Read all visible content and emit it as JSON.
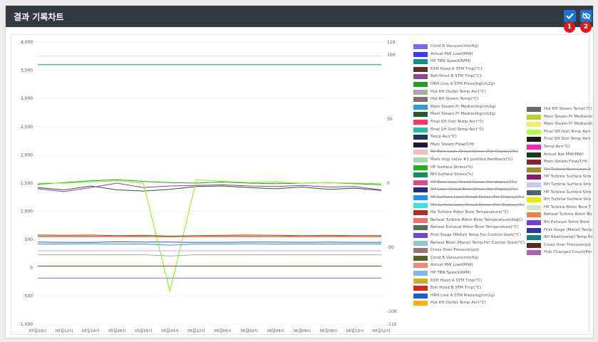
{
  "header": {
    "title": "결과 기록차트",
    "confirm_badge": "1",
    "view_badge": "2"
  },
  "chart_data": {
    "type": "line",
    "x_tick_labels": [
      "05일10시",
      "05일12시",
      "05일14시",
      "05일16시",
      "05일18시",
      "05일20시",
      "05일22시",
      "06일00시",
      "06일02시",
      "06일04시",
      "06일06시",
      "06일08시",
      "06일10시",
      "06일12시"
    ],
    "left_axis": {
      "range": [
        -1000,
        4000
      ],
      "ticks": [
        "4,000",
        "3,500",
        "3,000",
        "2,500",
        "2,000",
        "1,500",
        "1,000",
        "500",
        "0",
        "-500",
        "-1,000"
      ]
    },
    "right_axis": {
      "range": [
        -110,
        110
      ],
      "ticks": [
        "110",
        "100",
        "50",
        "0",
        "-50",
        "-100",
        "-110"
      ]
    },
    "series": [
      {
        "name": "Cond B Vacuum(mmHg)",
        "color": "#7b68ee",
        "axis": "right",
        "values": [
          -74,
          -74,
          -74,
          -74,
          -74,
          -74,
          -74,
          -74,
          -74,
          -74,
          -74,
          -74,
          -74,
          -74
        ]
      },
      {
        "name": "Actual MW Load(MW)",
        "color": "#3c3cff",
        "axis": "left",
        "values": [
          455,
          450,
          450,
          460,
          455,
          455,
          450,
          450,
          455,
          455,
          450,
          455,
          450,
          450
        ]
      },
      {
        "name": "HP TBN Speed(RPM)",
        "color": "#0f8f8f",
        "axis": "left",
        "values": [
          3600,
          3600,
          3600,
          3600,
          3600,
          3600,
          3600,
          3600,
          3600,
          3600,
          3600,
          3600,
          3600,
          3600
        ]
      },
      {
        "name": "Hot RH Steam Temp(°C)",
        "color": "#c8e6c0",
        "axis": "left",
        "values": [
          3750,
          3750,
          3750,
          3750,
          3750,
          3750,
          3750,
          3750,
          3750,
          3750,
          3750,
          3750,
          3750,
          3750
        ]
      },
      {
        "name": "Main Steam Pr Median(kg/cm2g)",
        "color": "#1ca81c",
        "axis": "left",
        "values": [
          1480,
          1510,
          1540,
          1560,
          1530,
          1510,
          1500,
          1520,
          1500,
          1490,
          1500,
          1510,
          1490,
          1470
        ]
      },
      {
        "name": "Main Steam Pr Median(kg/cm2g)",
        "color": "#2a5a2a",
        "axis": "left",
        "values": [
          1420,
          1380,
          1450,
          1380,
          1360,
          1390,
          1440,
          1450,
          1420,
          1400,
          1430,
          1390,
          1410,
          1370
        ]
      },
      {
        "name": "Final SH Outl Temp Avr(°C)",
        "color": "#9932cc",
        "axis": "left",
        "values": [
          1400,
          1350,
          1420,
          1500,
          1420,
          1450,
          1460,
          1470,
          1450,
          1440,
          1460,
          1430,
          1440,
          1380
        ]
      },
      {
        "name": "Final SH Outl Temp Avr(°C)",
        "color": "#7cfc00",
        "axis": "left",
        "values": [
          1500,
          1500,
          1520,
          1540,
          1500,
          -420,
          1560,
          1530,
          1510,
          1520,
          1500,
          1510,
          1500,
          1490
        ]
      },
      {
        "name": "Hp Turbine Rotor Bore Temperature(°C)",
        "color": "#8b4513",
        "axis": "left",
        "values": [
          580,
          575,
          580,
          570,
          575,
          560,
          570,
          575,
          580,
          575,
          570,
          575,
          570,
          570
        ]
      },
      {
        "name": "Reheat Turbine Rotor Bore Temperature(degC)",
        "color": "#f08080",
        "axis": "left",
        "values": [
          560,
          560,
          560,
          555,
          560,
          545,
          560,
          560,
          560,
          555,
          560,
          560,
          555,
          560
        ]
      },
      {
        "name": "Reheat Exhaust Rotor Bore Temperature(°C)",
        "color": "#8fbc8f",
        "axis": "left",
        "values": [
          230,
          230,
          230,
          230,
          230,
          210,
          230,
          230,
          230,
          230,
          230,
          230,
          230,
          230
        ]
      },
      {
        "name": "First Stage (Metal) Temp For Control Start(°C)",
        "color": "#c8a0ff",
        "axis": "left",
        "values": [
          300,
          300,
          300,
          300,
          300,
          300,
          300,
          300,
          300,
          300,
          300,
          300,
          300,
          300
        ]
      },
      {
        "name": "Reheat Bowl (Metal) Temp For Control Start(°C)",
        "color": "#e07020",
        "axis": "left",
        "values": [
          550,
          550,
          550,
          550,
          550,
          550,
          550,
          550,
          550,
          550,
          550,
          550,
          550,
          550
        ]
      },
      {
        "name": "Cross Over Pressure(psi)",
        "color": "#6b4226",
        "axis": "left",
        "values": [
          30,
          30,
          30,
          30,
          30,
          30,
          30,
          30,
          30,
          30,
          30,
          30,
          30,
          30
        ]
      },
      {
        "name": "HP Bore Lean Ahead Stress (for display)(%)",
        "color": "#1e90ff",
        "axis": "left",
        "values": [
          420,
          420,
          425,
          420,
          420,
          400,
          420,
          420,
          425,
          420,
          420,
          420,
          420,
          420
        ]
      }
    ]
  },
  "legend_col1": [
    {
      "label": "Cond B Vacuum(mmHg)",
      "color": "#7b68ee",
      "off": false
    },
    {
      "label": "Actual MW Load(MW)",
      "color": "#3c3cff",
      "off": false
    },
    {
      "label": "HP TBN Speed(RPM)",
      "color": "#0f8f8f",
      "off": false
    },
    {
      "label": "EXH Hood A STM Tmp(°C)",
      "color": "#6b2a2a",
      "off": false
    },
    {
      "label": "Exh Hood B STM Tmp(°C)",
      "color": "#8b4a8b",
      "off": false
    },
    {
      "label": "HRH Line A STM Press(kg/cm2g)",
      "color": "#22a022",
      "off": false
    },
    {
      "label": "Hot RH Outlet Temp Avr(°C)",
      "color": "#a9a9a9",
      "off": false
    },
    {
      "label": "Hot RH Steam Temp(°C)",
      "color": "#8b6b6b",
      "off": false
    },
    {
      "label": "Main Steam Pr Median(kg/cm2g)",
      "color": "#2aa0d0",
      "off": false
    },
    {
      "label": "Main Steam Pr Median(kg/cm2g)",
      "color": "#2a5a2a",
      "off": false
    },
    {
      "label": "Final SH Outl Temp Avr(°C)",
      "color": "#ff3366",
      "off": false
    },
    {
      "label": "Final SH Outl Temp Avr(°C)",
      "color": "#20c0a0",
      "off": false
    },
    {
      "label": "Temp Avr(°C)",
      "color": "#1a3a5a",
      "off": false
    },
    {
      "label": "Main Steam Flow(T/H)",
      "color": "#1a1a3a",
      "off": false
    },
    {
      "label": "Rh Bore Lean Ahead Stress (For Display)(%)",
      "color": "#f4b8c8",
      "off": true
    },
    {
      "label": "Main stop valve #1 position feedback(%)",
      "color": "#a8d8a8",
      "off": false
    },
    {
      "label": "HP Surface Stress(%)",
      "color": "#22b022",
      "off": false
    },
    {
      "label": "RH Surface Stress(%)",
      "color": "#109060",
      "off": false
    },
    {
      "label": "HP Bore Lean Ahead Stress (for display)(%)",
      "color": "#e04890",
      "off": true
    },
    {
      "label": "RH Lean Ahead Bore Stress (for Display)(%)",
      "color": "#2a2a7a",
      "off": true
    },
    {
      "label": "HP Surface Lean Ahead Stress (For Display)(%)",
      "color": "#1e90ff",
      "off": true
    },
    {
      "label": "RH Surface Lean Ahead Stress (For Display)(%)",
      "color": "#40e0e0",
      "off": true
    },
    {
      "label": "Hp Turbine Rotor Bore Temperature(°C)",
      "color": "#b03020",
      "off": false
    },
    {
      "label": "Reheat Turbine Rotor Bore Temperature(degC)",
      "color": "#f07070",
      "off": false
    },
    {
      "label": "Reheat Exhaust Rotor Bore Temperature(°C)",
      "color": "#507050",
      "off": false
    },
    {
      "label": "First Stage (Metal) Temp For Control Start(°C)",
      "color": "#6a4acd",
      "off": false
    },
    {
      "label": "Reheat Bowl (Metal) Temp For Control Start(°C)",
      "color": "#90c8c8",
      "off": false
    },
    {
      "label": "Cross Over Pressure(psi)",
      "color": "#a07070",
      "off": false
    },
    {
      "label": "Cond B Vacuum(mmHg)",
      "color": "#5a6030",
      "off": false
    },
    {
      "label": "Actual MW Load(MW)",
      "color": "#f08878",
      "off": false
    },
    {
      "label": "HP TBN Speed(RPM)",
      "color": "#7ab8e8",
      "off": false
    },
    {
      "label": "EXH Hood A STM Tmp(°C)",
      "color": "#c8b020",
      "off": false
    },
    {
      "label": "Exh Hood B STM Tmp(°C)",
      "color": "#e02020",
      "off": false
    },
    {
      "label": "HRH Line A STM Press(kg/cm2g)",
      "color": "#1a5adf",
      "off": false
    },
    {
      "label": "Hot RH Outlet Temp Avr(°C)",
      "color": "#ffb000",
      "off": false
    }
  ],
  "legend_col2": [
    {
      "label": "Hot RH Steam Temp(°C)",
      "color": "#6a6a6a",
      "off": false
    },
    {
      "label": "Main Steam Pr Median(k",
      "color": "#b8d030",
      "off": false
    },
    {
      "label": "Main Steam Pr Median(k",
      "color": "#f0f070",
      "off": false
    },
    {
      "label": "Final SH Outl Temp Avr(",
      "color": "#b0ff40",
      "off": false
    },
    {
      "label": "Final SH Outl Temp Avr(",
      "color": "#1a1a1a",
      "off": false
    },
    {
      "label": "Temp Avr(°C)",
      "color": "#ff20c0",
      "off": false
    },
    {
      "label": "Actual Net MW(MW)",
      "color": "#1a3a1a",
      "off": false
    },
    {
      "label": "Main Steam Flow(T/H)",
      "color": "#8b2030",
      "off": false
    },
    {
      "label": "RH Turbine Bore Lean A",
      "color": "#a08c20",
      "off": true
    },
    {
      "label": "HP Turbine Surface Stre",
      "color": "#8b1a6a",
      "off": false
    },
    {
      "label": "RH Turbine Surface Stre",
      "color": "#c8c8f0",
      "off": false
    },
    {
      "label": "HP Turbine Surface Stre",
      "color": "#506070",
      "off": false
    },
    {
      "label": "RH Turbine Surface Stre",
      "color": "#e0f000",
      "off": false
    },
    {
      "label": "HP Turbine Rotor Bore T",
      "color": "#d0e8c0",
      "off": false
    },
    {
      "label": "Reheat Turbine Rotor Bo",
      "color": "#f08040",
      "off": false
    },
    {
      "label": "RH Exhaust Rotor Bore",
      "color": "#7040d0",
      "off": false
    },
    {
      "label": "First Stage (Metal) Temp",
      "color": "#2a3aa0",
      "off": false
    },
    {
      "label": "RH Bowl(metal) Temp Fo",
      "color": "#108080",
      "off": false
    },
    {
      "label": "Cross Over Pressure(psi",
      "color": "#5a2a1a",
      "off": false
    },
    {
      "label": "Hub Changed Count(Per",
      "color": "#b060b0",
      "off": false
    }
  ]
}
